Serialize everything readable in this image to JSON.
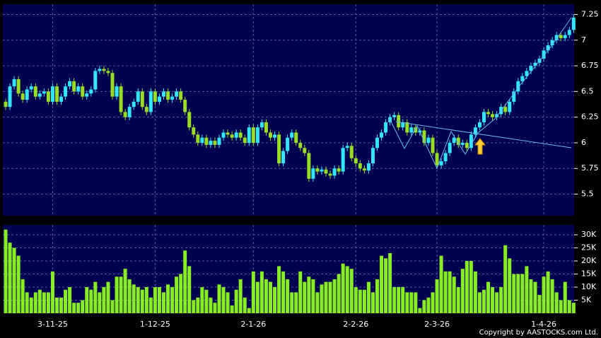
{
  "chart_data": [
    {
      "type": "candlestick",
      "categories": [
        null,
        null,
        null,
        null,
        null,
        null,
        null,
        null,
        null,
        null,
        null,
        "3-11-25",
        null,
        null,
        null,
        null,
        null,
        null,
        null,
        null,
        null,
        null,
        null,
        null,
        null,
        null,
        null,
        null,
        null,
        null,
        null,
        null,
        null,
        null,
        null,
        "1-12-25",
        null,
        null,
        null,
        null,
        null,
        null,
        null,
        null,
        null,
        null,
        null,
        null,
        null,
        null,
        null,
        null,
        null,
        null,
        null,
        null,
        null,
        null,
        "2-1-26",
        null,
        null,
        null,
        null,
        null,
        null,
        null,
        null,
        null,
        null,
        null,
        null,
        null,
        null,
        null,
        null,
        null,
        null,
        null,
        null,
        null,
        null,
        null,
        "2-2-26",
        null,
        null,
        null,
        null,
        null,
        null,
        null,
        null,
        null,
        null,
        null,
        null,
        null,
        null,
        null,
        null,
        null,
        null,
        "2-3-26",
        null,
        null,
        null,
        null,
        null,
        null,
        null,
        null,
        null,
        null,
        null,
        null,
        null,
        null,
        null,
        null,
        null,
        null,
        null,
        null,
        null,
        null,
        null,
        null,
        "1-4-26",
        null,
        null,
        null,
        null,
        null,
        null,
        null
      ],
      "open": [
        6.4,
        6.35,
        6.55,
        6.62,
        6.48,
        6.42,
        6.52,
        6.55,
        6.45,
        6.48,
        6.5,
        6.4,
        6.55,
        6.4,
        6.45,
        6.55,
        6.6,
        6.5,
        6.55,
        6.45,
        6.48,
        6.52,
        6.7,
        6.72,
        6.7,
        6.68,
        6.45,
        6.55,
        6.3,
        6.25,
        6.35,
        6.4,
        6.5,
        6.35,
        6.3,
        6.5,
        6.4,
        6.45,
        6.5,
        6.42,
        6.45,
        6.5,
        6.42,
        6.3,
        6.15,
        6.08,
        6.0,
        6.05,
        5.98,
        6.02,
        5.98,
        6.05,
        6.1,
        6.08,
        6.05,
        6.1,
        6.05,
        6.0,
        6.15,
        6.0,
        6.15,
        6.2,
        6.1,
        6.05,
        6.08,
        5.8,
        5.92,
        6.05,
        6.1,
        6.0,
        5.95,
        5.9,
        5.65,
        5.75,
        5.72,
        5.74,
        5.7,
        5.68,
        5.75,
        5.72,
        5.95,
        5.97,
        5.85,
        5.8,
        5.75,
        5.73,
        5.8,
        5.95,
        6.05,
        6.1,
        6.2,
        6.25,
        6.27,
        6.15,
        6.2,
        6.1,
        6.15,
        6.1,
        6.12,
        6.0,
        6.05,
        5.9,
        5.78,
        5.82,
        5.9,
        6.0,
        6.05,
        5.98,
        6.0,
        5.95,
        6.08,
        6.15,
        6.2,
        6.3,
        6.28,
        6.25,
        6.28,
        6.35,
        6.3,
        6.4,
        6.5,
        6.6,
        6.65,
        6.7,
        6.75,
        6.78,
        6.82,
        6.9,
        6.95,
        7.0,
        7.05,
        7.02,
        7.05,
        7.1
      ],
      "high": [
        6.43,
        6.58,
        6.65,
        6.65,
        6.51,
        6.55,
        6.58,
        6.58,
        6.51,
        6.53,
        6.53,
        6.58,
        6.58,
        6.48,
        6.58,
        6.63,
        6.63,
        6.58,
        6.58,
        6.51,
        6.55,
        6.73,
        6.75,
        6.75,
        6.73,
        6.71,
        6.58,
        6.58,
        6.33,
        6.38,
        6.43,
        6.53,
        6.53,
        6.38,
        6.53,
        6.53,
        6.48,
        6.53,
        6.53,
        6.48,
        6.53,
        6.53,
        6.45,
        6.33,
        6.18,
        6.11,
        6.08,
        6.08,
        6.05,
        6.05,
        6.08,
        6.13,
        6.13,
        6.11,
        6.13,
        6.13,
        6.08,
        6.18,
        6.18,
        6.18,
        6.23,
        6.23,
        6.13,
        6.11,
        6.11,
        5.95,
        6.08,
        6.13,
        6.13,
        6.03,
        5.98,
        5.93,
        5.78,
        5.78,
        5.77,
        5.77,
        5.73,
        5.78,
        5.78,
        5.98,
        6.0,
        6.0,
        5.88,
        5.83,
        5.78,
        5.83,
        5.98,
        6.08,
        6.13,
        6.23,
        6.28,
        6.3,
        6.3,
        6.23,
        6.23,
        6.18,
        6.18,
        6.15,
        6.15,
        6.08,
        6.08,
        5.93,
        5.85,
        5.93,
        6.03,
        6.08,
        6.08,
        6.03,
        6.03,
        6.11,
        6.18,
        6.23,
        6.33,
        6.33,
        6.31,
        6.31,
        6.38,
        6.38,
        6.43,
        6.53,
        6.63,
        6.68,
        6.73,
        6.78,
        6.81,
        6.85,
        6.93,
        6.98,
        7.03,
        7.08,
        7.08,
        7.08,
        7.13,
        7.25
      ],
      "low": [
        6.32,
        6.32,
        6.52,
        6.45,
        6.39,
        6.39,
        6.49,
        6.42,
        6.42,
        6.45,
        6.37,
        6.37,
        6.37,
        6.37,
        6.42,
        6.52,
        6.47,
        6.47,
        6.42,
        6.42,
        6.45,
        6.49,
        6.67,
        6.67,
        6.65,
        6.42,
        6.42,
        6.27,
        6.22,
        6.22,
        6.32,
        6.37,
        6.32,
        6.27,
        6.27,
        6.37,
        6.37,
        6.42,
        6.39,
        6.39,
        6.42,
        6.39,
        6.27,
        6.12,
        6.05,
        5.97,
        5.97,
        5.95,
        5.95,
        5.95,
        5.95,
        6.02,
        6.05,
        6.02,
        6.02,
        6.02,
        5.97,
        5.97,
        5.97,
        5.97,
        6.12,
        6.07,
        6.02,
        6.02,
        5.77,
        5.77,
        5.89,
        6.02,
        5.97,
        5.92,
        5.87,
        5.62,
        5.62,
        5.69,
        5.69,
        5.67,
        5.65,
        5.65,
        5.69,
        5.69,
        5.92,
        5.82,
        5.77,
        5.72,
        5.7,
        5.7,
        5.77,
        5.92,
        6.02,
        6.07,
        6.17,
        6.22,
        6.12,
        6.12,
        6.07,
        6.07,
        6.07,
        6.07,
        5.97,
        5.97,
        5.87,
        5.75,
        5.75,
        5.79,
        5.87,
        5.97,
        5.95,
        5.95,
        5.92,
        5.92,
        6.05,
        6.12,
        6.17,
        6.25,
        6.22,
        6.22,
        6.25,
        6.27,
        6.27,
        6.37,
        6.47,
        6.57,
        6.62,
        6.67,
        6.72,
        6.75,
        6.79,
        6.87,
        6.92,
        6.97,
        6.99,
        6.99,
        7.02,
        7.07
      ],
      "close": [
        6.35,
        6.55,
        6.62,
        6.48,
        6.42,
        6.52,
        6.55,
        6.45,
        6.48,
        6.5,
        6.4,
        6.55,
        6.4,
        6.45,
        6.55,
        6.6,
        6.5,
        6.55,
        6.45,
        6.48,
        6.52,
        6.7,
        6.72,
        6.7,
        6.68,
        6.45,
        6.55,
        6.3,
        6.25,
        6.35,
        6.4,
        6.5,
        6.35,
        6.3,
        6.5,
        6.4,
        6.45,
        6.5,
        6.42,
        6.45,
        6.5,
        6.42,
        6.3,
        6.15,
        6.08,
        6.0,
        6.05,
        5.98,
        6.02,
        5.98,
        6.05,
        6.1,
        6.08,
        6.05,
        6.1,
        6.05,
        6.0,
        6.15,
        6.0,
        6.15,
        6.2,
        6.1,
        6.05,
        6.08,
        5.8,
        5.92,
        6.05,
        6.1,
        6.0,
        5.95,
        5.9,
        5.65,
        5.75,
        5.72,
        5.74,
        5.7,
        5.68,
        5.75,
        5.72,
        5.95,
        5.97,
        5.85,
        5.8,
        5.75,
        5.73,
        5.8,
        5.95,
        6.05,
        6.1,
        6.2,
        6.25,
        6.27,
        6.15,
        6.2,
        6.1,
        6.15,
        6.1,
        6.12,
        6.0,
        6.05,
        5.9,
        5.78,
        5.82,
        5.9,
        6.0,
        6.05,
        5.98,
        6.0,
        5.95,
        6.08,
        6.15,
        6.2,
        6.3,
        6.28,
        6.25,
        6.28,
        6.35,
        6.3,
        6.4,
        6.5,
        6.6,
        6.65,
        6.7,
        6.75,
        6.78,
        6.82,
        6.9,
        6.95,
        7.0,
        7.05,
        7.02,
        7.05,
        7.1,
        7.22
      ],
      "up_color": "#33e6ff",
      "down_color": "#99dd22",
      "ylim": [
        5.29,
        7.35
      ],
      "yticks": [
        5.5,
        5.75,
        6,
        6.25,
        6.5,
        6.75,
        7,
        7.25
      ],
      "grid": true
    },
    {
      "type": "bar",
      "values": [
        32000,
        27000,
        25000,
        22000,
        13000,
        8000,
        6000,
        8000,
        9000,
        8000,
        8000,
        16000,
        6000,
        6000,
        9000,
        10000,
        4000,
        4000,
        5000,
        10000,
        9000,
        12000,
        8000,
        10000,
        12000,
        5000,
        14000,
        14000,
        17000,
        13000,
        11000,
        10000,
        9000,
        10000,
        6000,
        10000,
        10000,
        8000,
        11000,
        10000,
        14000,
        15000,
        24000,
        18000,
        5000,
        6000,
        10000,
        9000,
        6000,
        4000,
        11000,
        10000,
        8000,
        3000,
        9000,
        13000,
        6000,
        2000,
        16000,
        12000,
        16000,
        13000,
        12000,
        10000,
        18000,
        16000,
        13000,
        8000,
        8000,
        16000,
        12000,
        14000,
        13000,
        8000,
        11000,
        12000,
        12000,
        13000,
        15000,
        19000,
        18000,
        17000,
        10000,
        9000,
        9000,
        12000,
        8000,
        13000,
        22000,
        21000,
        23000,
        10000,
        10000,
        10000,
        8000,
        8000,
        8000,
        2000,
        5000,
        6000,
        8000,
        13000,
        22000,
        16000,
        16000,
        14000,
        10000,
        17000,
        20000,
        20000,
        16000,
        8000,
        9000,
        12000,
        10000,
        8000,
        10000,
        26000,
        21000,
        15000,
        15000,
        15000,
        18000,
        13000,
        12000,
        7000,
        14000,
        16000,
        13000,
        8000,
        5000,
        12000,
        5000,
        4000
      ],
      "color": "#88ee22",
      "ylim": [
        0,
        33800
      ],
      "yticks": [
        {
          "value": 5000,
          "label": "5K"
        },
        {
          "value": 10000,
          "label": "10K"
        },
        {
          "value": 15000,
          "label": "15K"
        },
        {
          "value": 20000,
          "label": "20K"
        },
        {
          "value": 25000,
          "label": "25K"
        },
        {
          "value": 30000,
          "label": "30K"
        }
      ],
      "grid": true
    }
  ],
  "footer": "Copyright by AASTOCKS.com Ltd."
}
